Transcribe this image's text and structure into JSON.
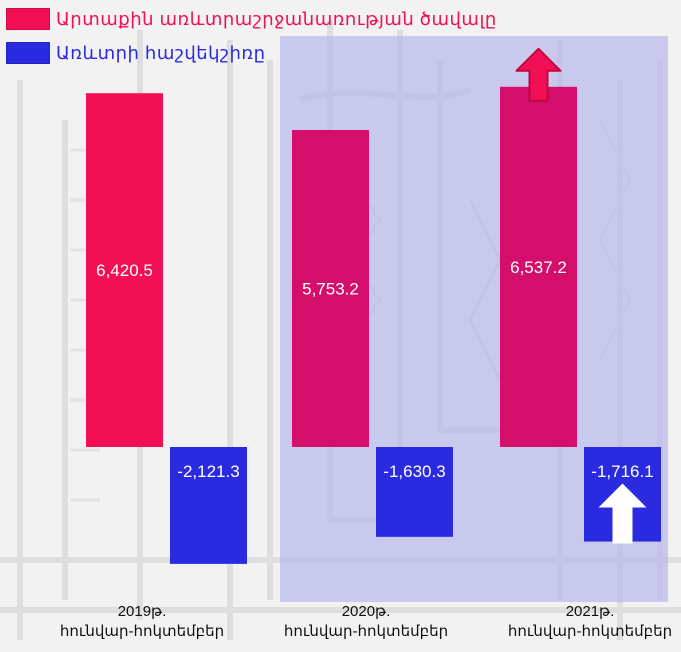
{
  "colors": {
    "background": "#f4f4f4",
    "highlight_panel": "#b9b9ea",
    "primary_series": "#f20f55",
    "primary_series_highlighted": "#d40f6b",
    "secondary_series": "#2a2ae0",
    "text_secondary": "#2a2ae0",
    "text_primary": "#f20f55"
  },
  "legend": {
    "items": [
      {
        "label": "Արտաքին առևտրաշրջանառության ծավալը",
        "color": "#f20f55",
        "icon": "legend-swatch"
      },
      {
        "label": "Առևտրի հաշվեկշիռը",
        "color": "#2a2ae0",
        "icon": "legend-swatch"
      }
    ]
  },
  "categories": [
    {
      "line1": "2019թ.",
      "line2": "հունվար-հոկտեմբեր"
    },
    {
      "line1": "2020թ.",
      "line2": "հունվար-հոկտեմբեր"
    },
    {
      "line1": "2021թ.",
      "line2": "հունվար-հոկտեմբեր"
    }
  ],
  "icons": {
    "trade_volume_trend": "up-arrow-icon",
    "trade_balance_trend": "up-arrow-icon"
  },
  "chart_data": {
    "type": "bar",
    "categories": [
      "2019թ. հունվար-հոկտեմբեր",
      "2020թ. հունվար-հոկտեմբեր",
      "2021թ. հունվար-հոկտեմբեր"
    ],
    "series": [
      {
        "name": "Արտաքին առևտրաշրջանառության ծավալը",
        "values": [
          6420.5,
          5753.2,
          6537.2
        ],
        "labels": [
          "6,420.5",
          "5,753.2",
          "6,537.2"
        ]
      },
      {
        "name": "Առևտրի հաշվեկշիռը",
        "values": [
          -2121.3,
          -1630.3,
          -1716.1
        ],
        "labels": [
          "-2,121.3",
          "-1,630.3",
          "-1,716.1"
        ]
      }
    ],
    "ylim": [
      -2500,
      7500
    ],
    "highlighted_categories": [
      1,
      2
    ],
    "grid": false,
    "legend_position": "top-left"
  }
}
